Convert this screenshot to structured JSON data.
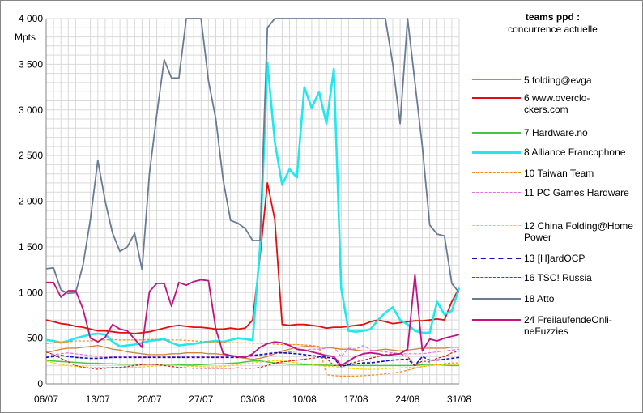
{
  "chart_data": {
    "type": "line",
    "title": "teams ppd :",
    "subtitle": "concurrence actuelle",
    "ylabel": "Mpts",
    "xlabel": "",
    "ylim": [
      0,
      4000
    ],
    "yticks": [
      "0",
      "500",
      "1 000",
      "1 500",
      "2 000",
      "2 500",
      "3 000",
      "3 500",
      "4 000"
    ],
    "ytick_values": [
      0,
      500,
      1000,
      1500,
      2000,
      2500,
      3000,
      3500,
      4000
    ],
    "xticks": [
      "06/07",
      "13/07",
      "20/07",
      "27/07",
      "03/08",
      "10/08",
      "17/08",
      "24/08",
      "31/08"
    ],
    "grid": "on",
    "legend_position": "right",
    "x_count": 57,
    "series": [
      {
        "name": "5 folding@evga",
        "color": "#d0843c",
        "width": 1.3,
        "dash": "solid",
        "values": [
          340,
          360,
          380,
          390,
          390,
          400,
          410,
          420,
          400,
          380,
          370,
          350,
          340,
          330,
          320,
          320,
          320,
          330,
          330,
          340,
          340,
          340,
          330,
          330,
          320,
          310,
          290,
          280,
          270,
          280,
          300,
          330,
          360,
          380,
          400,
          410,
          410,
          400,
          400,
          390,
          380,
          380,
          370,
          360,
          360,
          370,
          380,
          370,
          360,
          370,
          380,
          390,
          390,
          390,
          390,
          400,
          400
        ]
      },
      {
        "name": "6 www.overclo-ckers.com",
        "color": "#e01010",
        "width": 1.8,
        "dash": "solid",
        "values": [
          700,
          680,
          660,
          650,
          630,
          620,
          600,
          580,
          580,
          570,
          560,
          560,
          550,
          560,
          570,
          590,
          610,
          630,
          640,
          630,
          620,
          620,
          610,
          600,
          600,
          610,
          600,
          610,
          700,
          1400,
          2200,
          1800,
          650,
          640,
          650,
          650,
          640,
          630,
          610,
          620,
          620,
          630,
          640,
          650,
          680,
          700,
          680,
          660,
          670,
          680,
          690,
          690,
          700,
          710,
          700,
          900,
          1050
        ]
      },
      {
        "name": "7 Hardware.no",
        "color": "#49c73c",
        "width": 1.5,
        "dash": "solid",
        "values": [
          260,
          250,
          245,
          240,
          235,
          230,
          225,
          225,
          220,
          220,
          215,
          215,
          215,
          215,
          215,
          215,
          215,
          215,
          210,
          205,
          205,
          210,
          215,
          220,
          220,
          225,
          230,
          240,
          250,
          250,
          240,
          230,
          220,
          215,
          215,
          210,
          210,
          205,
          205,
          200,
          200,
          200,
          200,
          200,
          200,
          200,
          200,
          200,
          200,
          200,
          200,
          210,
          215,
          215,
          205,
          200,
          200
        ]
      },
      {
        "name": "8 Alliance Francophone",
        "color": "#21e7ef",
        "width": 2.6,
        "dash": "solid",
        "values": [
          480,
          470,
          450,
          470,
          500,
          520,
          540,
          550,
          540,
          460,
          410,
          420,
          430,
          450,
          470,
          480,
          490,
          450,
          420,
          430,
          440,
          450,
          460,
          470,
          460,
          480,
          500,
          490,
          480,
          1500,
          3520,
          2650,
          2180,
          2350,
          2260,
          3250,
          3020,
          3200,
          2850,
          3450,
          1050,
          580,
          570,
          580,
          600,
          700,
          780,
          840,
          700,
          650,
          580,
          560,
          560,
          900,
          760,
          800,
          1050
        ]
      },
      {
        "name": "10 Taiwan Team",
        "color": "#f0901a",
        "width": 1.3,
        "dash": "3,2",
        "values": [
          440,
          450,
          460,
          460,
          470,
          470,
          470,
          475,
          480,
          485,
          480,
          480,
          480,
          480,
          485,
          485,
          480,
          480,
          480,
          475,
          470,
          465,
          460,
          460,
          455,
          450,
          450,
          450,
          445,
          445,
          440,
          435,
          430,
          430,
          430,
          425,
          420,
          410,
          100,
          90,
          85,
          85,
          85,
          90,
          95,
          100,
          110,
          120,
          130,
          150,
          170,
          190,
          200,
          210,
          220,
          230,
          230
        ]
      },
      {
        "name": "11 PC Games Hardware",
        "color": "#e070e0",
        "width": 1.2,
        "dash": "4,2",
        "values": [
          300,
          320,
          330,
          340,
          330,
          320,
          310,
          300,
          300,
          300,
          300,
          300,
          300,
          300,
          300,
          300,
          300,
          300,
          300,
          300,
          300,
          300,
          300,
          300,
          300,
          300,
          300,
          300,
          300,
          310,
          320,
          330,
          340,
          350,
          360,
          370,
          380,
          380,
          390,
          400,
          300,
          390,
          380,
          420,
          370,
          360,
          350,
          340,
          330,
          330,
          330,
          330,
          340,
          350,
          360,
          370,
          380
        ]
      },
      {
        "name": "12 China Folding@Home Power",
        "color": "#f5d400",
        "width": 1.3,
        "dash": "3,2",
        "values": [
          250,
          230,
          210,
          200,
          190,
          190,
          180,
          180,
          180,
          180,
          180,
          180,
          180,
          185,
          190,
          195,
          200,
          200,
          200,
          195,
          190,
          190,
          185,
          185,
          190,
          200,
          210,
          220,
          230,
          240,
          250,
          255,
          250,
          240,
          230,
          220,
          210,
          200,
          190,
          190,
          180,
          170,
          165,
          160,
          160,
          160,
          165,
          170,
          175,
          180,
          180,
          190,
          200,
          210,
          210,
          210,
          210
        ]
      },
      {
        "name": "13 [H]ardOCP",
        "color": "#1010b8",
        "width": 1.6,
        "dash": "4,2",
        "values": [
          290,
          300,
          310,
          300,
          290,
          285,
          280,
          280,
          285,
          290,
          290,
          290,
          290,
          290,
          290,
          290,
          290,
          290,
          290,
          290,
          290,
          290,
          290,
          290,
          290,
          290,
          290,
          300,
          310,
          320,
          330,
          340,
          340,
          335,
          330,
          320,
          310,
          300,
          290,
          280,
          190,
          210,
          220,
          230,
          230,
          240,
          250,
          260,
          265,
          270,
          200,
          300,
          260,
          260,
          270,
          280,
          290
        ]
      },
      {
        "name": "16 TSC! Russia",
        "color": "#d41a1a",
        "width": 1.2,
        "dash": "3,2",
        "values": [
          350,
          320,
          280,
          240,
          200,
          180,
          170,
          160,
          170,
          180,
          180,
          190,
          200,
          210,
          215,
          210,
          200,
          190,
          180,
          175,
          170,
          170,
          170,
          170,
          170,
          170,
          175,
          170,
          170,
          180,
          200,
          230,
          240,
          250,
          260,
          270,
          280,
          290,
          280,
          200,
          210,
          220,
          240,
          260,
          280,
          300,
          320,
          330,
          330,
          300,
          200,
          250,
          240,
          280,
          300,
          340,
          360
        ]
      },
      {
        "name": "18 Atto",
        "color": "#6a7b94",
        "width": 1.8,
        "dash": "solid",
        "values": [
          1260,
          1270,
          1030,
          990,
          1000,
          1300,
          1800,
          2450,
          2000,
          1650,
          1450,
          1500,
          1650,
          1250,
          2300,
          2950,
          3550,
          3350,
          3350,
          4000,
          4000,
          4000,
          3320,
          2900,
          2230,
          1790,
          1760,
          1700,
          1570,
          1570,
          3900,
          4000,
          4000,
          4000,
          4000,
          4000,
          4000,
          4000,
          4000,
          4000,
          4000,
          4000,
          4000,
          4000,
          4000,
          4000,
          4000,
          3500,
          2850,
          4000,
          3300,
          2600,
          1740,
          1640,
          1620,
          1100,
          1000
        ]
      },
      {
        "name": "24 FreilaufendeOnli-neFuzzies",
        "color": "#c01483",
        "width": 1.8,
        "dash": "solid",
        "values": [
          1110,
          1110,
          950,
          1020,
          1020,
          820,
          500,
          460,
          510,
          650,
          600,
          580,
          490,
          400,
          1010,
          1100,
          1100,
          850,
          1110,
          1080,
          1120,
          1140,
          1130,
          600,
          330,
          310,
          300,
          290,
          330,
          400,
          440,
          460,
          450,
          420,
          380,
          370,
          350,
          330,
          310,
          300,
          200,
          250,
          300,
          330,
          340,
          330,
          310,
          320,
          330,
          380,
          1200,
          360,
          490,
          470,
          500,
          520,
          540
        ]
      }
    ]
  }
}
